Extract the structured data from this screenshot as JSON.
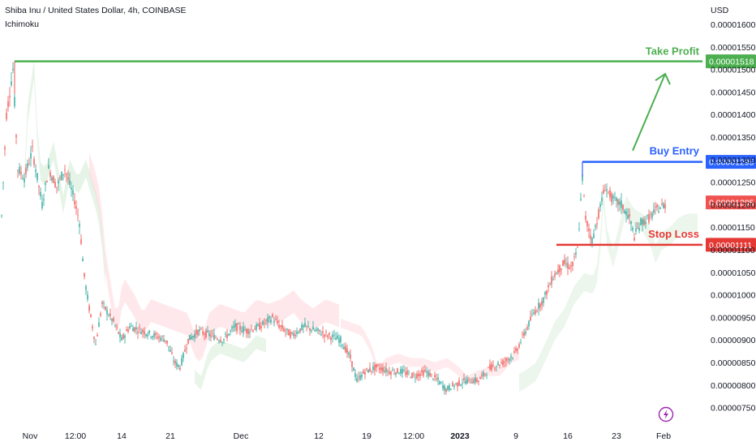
{
  "header": {
    "symbol_line": "Shiba Inu / United States Dollar, 4h, COINBASE",
    "indicator": "Ichimoku"
  },
  "currency": "USD",
  "colors": {
    "take_profit": "#4caf50",
    "buy_entry": "#2962ff",
    "stop_loss": "#e53935",
    "current_price": "#ef5350",
    "candle_up": "#26a69a",
    "candle_down": "#ef5350",
    "cloud_bull": "#c8e6c9",
    "cloud_bear": "#ffcdd2",
    "lightning": "#9c27b0"
  },
  "icons": {
    "flash": "lightning-icon"
  },
  "chart_data": {
    "type": "candlestick",
    "y_axis_ticks": [
      "0.00001600",
      "0.00001550",
      "0.00001500",
      "0.00001450",
      "0.00001400",
      "0.00001350",
      "0.00001300",
      "0.00001250",
      "0.00001200",
      "0.00001150",
      "0.00001100",
      "0.00001050",
      "0.00001000",
      "0.00000950",
      "0.00000900",
      "0.00000850",
      "0.00000800",
      "0.00000750"
    ],
    "ylim": [
      7.3e-06,
      1.64e-05
    ],
    "x_axis_labels": [
      {
        "label": "Nov",
        "bold": false
      },
      {
        "label": "12:00",
        "bold": false
      },
      {
        "label": "14",
        "bold": false
      },
      {
        "label": "21",
        "bold": false
      },
      {
        "label": "Dec",
        "bold": false
      },
      {
        "label": "12",
        "bold": false
      },
      {
        "label": "19",
        "bold": false
      },
      {
        "label": "12:00",
        "bold": false
      },
      {
        "label": "2023",
        "bold": true
      },
      {
        "label": "9",
        "bold": false
      },
      {
        "label": "16",
        "bold": false
      },
      {
        "label": "23",
        "bold": false
      },
      {
        "label": "Feb",
        "bold": false
      }
    ],
    "levels": [
      {
        "name": "Take Profit",
        "value": 1.518e-05,
        "label": "0.00001518",
        "color": "#4caf50"
      },
      {
        "name": "Buy Entry",
        "value": 1.295e-05,
        "label": "0.00001295",
        "color": "#2962ff"
      },
      {
        "name": "Stop Loss",
        "value": 1.111e-05,
        "label": "0.00001111",
        "color": "#e53935"
      }
    ],
    "current_price": {
      "value": 1.205e-05,
      "label": "0.00001205"
    },
    "annotations": [
      "Take Profit",
      "Buy Entry",
      "Stop Loss"
    ],
    "price_path": [
      [
        0,
        1.1e-05
      ],
      [
        8,
        1.4e-05
      ],
      [
        16,
        1.5e-05
      ],
      [
        22,
        1.28e-05
      ],
      [
        30,
        1.26e-05
      ],
      [
        40,
        1.32e-05
      ],
      [
        52,
        1.2e-05
      ],
      [
        60,
        1.28e-05
      ],
      [
        70,
        1.24e-05
      ],
      [
        80,
        1.28e-05
      ],
      [
        92,
        1.21e-05
      ],
      [
        98,
        1.16e-05
      ],
      [
        104,
        1.04e-05
      ],
      [
        110,
        9.7e-06
      ],
      [
        118,
        8.9e-06
      ],
      [
        126,
        9.8e-06
      ],
      [
        140,
        9.4e-06
      ],
      [
        150,
        9e-06
      ],
      [
        160,
        9.3e-06
      ],
      [
        175,
        9.2e-06
      ],
      [
        190,
        9.1e-06
      ],
      [
        205,
        9e-06
      ],
      [
        215,
        8.5e-06
      ],
      [
        222,
        8.4e-06
      ],
      [
        232,
        9e-06
      ],
      [
        245,
        9.2e-06
      ],
      [
        260,
        9.1e-06
      ],
      [
        275,
        9e-06
      ],
      [
        290,
        9.3e-06
      ],
      [
        305,
        9.2e-06
      ],
      [
        320,
        9.3e-06
      ],
      [
        336,
        9.5e-06
      ],
      [
        345,
        9.3e-06
      ],
      [
        360,
        9.1e-06
      ],
      [
        375,
        9.3e-06
      ],
      [
        390,
        9.2e-06
      ],
      [
        405,
        9.1e-06
      ],
      [
        420,
        9e-06
      ],
      [
        432,
        8.6e-06
      ],
      [
        440,
        8.1e-06
      ],
      [
        450,
        8.3e-06
      ],
      [
        465,
        8.4e-06
      ],
      [
        480,
        8.3e-06
      ],
      [
        495,
        8.3e-06
      ],
      [
        510,
        8.2e-06
      ],
      [
        525,
        8.3e-06
      ],
      [
        540,
        8.1e-06
      ],
      [
        550,
        7.9e-06
      ],
      [
        560,
        8e-06
      ],
      [
        575,
        8.1e-06
      ],
      [
        590,
        8.1e-06
      ],
      [
        605,
        8.4e-06
      ],
      [
        620,
        8.5e-06
      ],
      [
        635,
        8.7e-06
      ],
      [
        648,
        9.2e-06
      ],
      [
        658,
        9.6e-06
      ],
      [
        670,
        9.9e-06
      ],
      [
        682,
        1.04e-05
      ],
      [
        695,
        1.07e-05
      ],
      [
        705,
        1.06e-05
      ],
      [
        712,
        1.1e-05
      ],
      [
        718,
        1.26e-05
      ],
      [
        722,
        1.17e-05
      ],
      [
        730,
        1.12e-05
      ],
      [
        738,
        1.18e-05
      ],
      [
        746,
        1.24e-05
      ],
      [
        756,
        1.21e-05
      ],
      [
        766,
        1.2e-05
      ],
      [
        776,
        1.17e-05
      ],
      [
        782,
        1.13e-05
      ],
      [
        790,
        1.16e-05
      ],
      [
        800,
        1.17e-05
      ],
      [
        810,
        1.19e-05
      ],
      [
        820,
        1.2e-05
      ]
    ]
  }
}
